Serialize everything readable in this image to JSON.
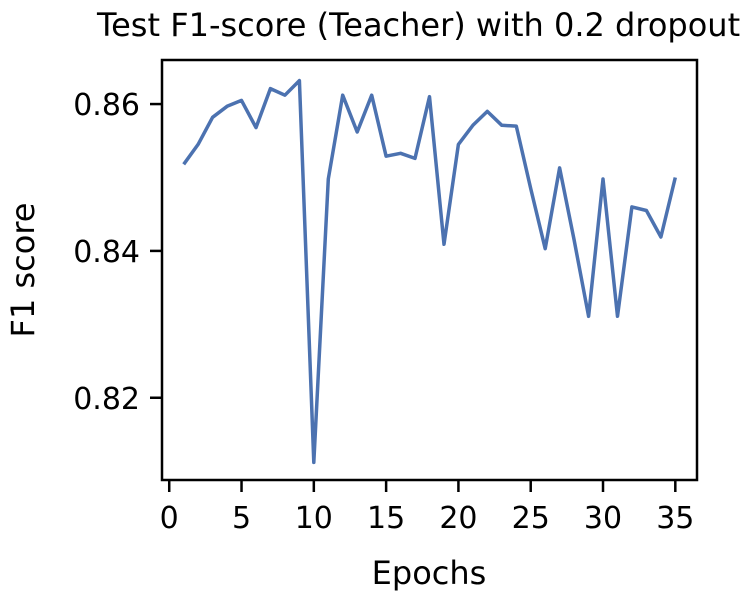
{
  "chart_data": {
    "type": "line",
    "title": "Test F1-score (Teacher) with 0.2 dropout",
    "xlabel": "Epochs",
    "ylabel": "F1 score",
    "xlim": [
      -0.5,
      36.5
    ],
    "ylim": [
      0.8088,
      0.866
    ],
    "xticks": [
      0,
      5,
      10,
      15,
      20,
      25,
      30,
      35
    ],
    "yticks": [
      0.82,
      0.84,
      0.86
    ],
    "ytick_labels": [
      "0.82",
      "0.84",
      "0.86"
    ],
    "grid": false,
    "line_color": "#4c72b0",
    "series": [
      {
        "x": [
          1,
          2,
          3,
          4,
          5,
          6,
          7,
          8,
          9,
          10,
          11,
          12,
          13,
          14,
          15,
          16,
          17,
          18,
          19,
          20,
          21,
          22,
          23,
          24,
          25,
          26,
          27,
          28,
          29,
          30,
          31,
          32,
          33,
          34,
          35
        ],
        "values": [
          0.8518,
          0.8545,
          0.8582,
          0.8597,
          0.8605,
          0.8568,
          0.8621,
          0.8612,
          0.8632,
          0.8112,
          0.8498,
          0.8612,
          0.8562,
          0.8612,
          0.8529,
          0.8533,
          0.8526,
          0.861,
          0.8409,
          0.8545,
          0.8571,
          0.859,
          0.8571,
          0.857,
          0.8485,
          0.8403,
          0.8513,
          0.8415,
          0.8311,
          0.8498,
          0.8311,
          0.846,
          0.8455,
          0.8419,
          0.85
        ]
      }
    ]
  }
}
